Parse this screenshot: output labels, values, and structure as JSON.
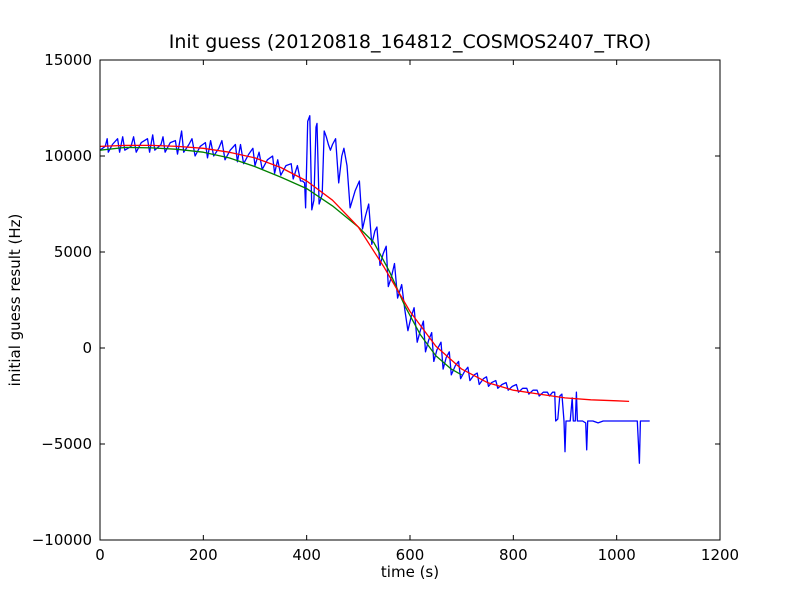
{
  "chart_data": {
    "type": "line",
    "title": "Init guess (20120818_164812_COSMOS2407_TRO)",
    "xlabel": "time (s)",
    "ylabel": "initial guess result (Hz)",
    "xlim": [
      0,
      1200
    ],
    "ylim": [
      -10000,
      15000
    ],
    "xticks": [
      0,
      200,
      400,
      600,
      800,
      1000,
      1200
    ],
    "yticks": [
      -10000,
      -5000,
      0,
      5000,
      10000,
      15000
    ],
    "xtick_labels": [
      "0",
      "200",
      "400",
      "600",
      "800",
      "1000",
      "1200"
    ],
    "ytick_labels": [
      "−10000",
      "−5000",
      "0",
      "5000",
      "10000",
      "15000"
    ],
    "grid": false,
    "series": [
      {
        "color": "#0000ff",
        "points": [
          [
            0,
            10300
          ],
          [
            10,
            10500
          ],
          [
            14,
            10900
          ],
          [
            16,
            10200
          ],
          [
            24,
            10600
          ],
          [
            34,
            10900
          ],
          [
            38,
            10200
          ],
          [
            44,
            11000
          ],
          [
            48,
            10300
          ],
          [
            60,
            10500
          ],
          [
            65,
            11000
          ],
          [
            70,
            10200
          ],
          [
            80,
            10700
          ],
          [
            92,
            10900
          ],
          [
            96,
            10200
          ],
          [
            102,
            11100
          ],
          [
            106,
            10300
          ],
          [
            118,
            10600
          ],
          [
            122,
            11000
          ],
          [
            126,
            10200
          ],
          [
            136,
            10700
          ],
          [
            146,
            10800
          ],
          [
            150,
            10100
          ],
          [
            158,
            11300
          ],
          [
            162,
            10200
          ],
          [
            172,
            10600
          ],
          [
            178,
            10900
          ],
          [
            184,
            10000
          ],
          [
            194,
            10500
          ],
          [
            204,
            10700
          ],
          [
            208,
            9900
          ],
          [
            214,
            10800
          ],
          [
            220,
            10000
          ],
          [
            230,
            10400
          ],
          [
            236,
            10800
          ],
          [
            242,
            9800
          ],
          [
            252,
            10300
          ],
          [
            262,
            10600
          ],
          [
            266,
            9700
          ],
          [
            272,
            10600
          ],
          [
            278,
            9600
          ],
          [
            288,
            10100
          ],
          [
            296,
            10400
          ],
          [
            300,
            9500
          ],
          [
            308,
            10200
          ],
          [
            314,
            9300
          ],
          [
            324,
            9800
          ],
          [
            334,
            10000
          ],
          [
            338,
            9100
          ],
          [
            344,
            9800
          ],
          [
            350,
            9000
          ],
          [
            360,
            9500
          ],
          [
            370,
            9600
          ],
          [
            374,
            8800
          ],
          [
            382,
            9500
          ],
          [
            388,
            8700
          ],
          [
            392,
            8700
          ],
          [
            396,
            8600
          ],
          [
            398,
            7300
          ],
          [
            402,
            11800
          ],
          [
            406,
            12100
          ],
          [
            410,
            7200
          ],
          [
            414,
            7700
          ],
          [
            418,
            11500
          ],
          [
            420,
            11700
          ],
          [
            424,
            7500
          ],
          [
            430,
            8000
          ],
          [
            434,
            11300
          ],
          [
            438,
            11000
          ],
          [
            442,
            10600
          ],
          [
            446,
            10300
          ],
          [
            450,
            10600
          ],
          [
            456,
            10900
          ],
          [
            462,
            8600
          ],
          [
            468,
            10000
          ],
          [
            472,
            10400
          ],
          [
            478,
            9500
          ],
          [
            484,
            7300
          ],
          [
            494,
            8200
          ],
          [
            502,
            8700
          ],
          [
            508,
            6200
          ],
          [
            514,
            6900
          ],
          [
            520,
            7500
          ],
          [
            526,
            5400
          ],
          [
            532,
            6100
          ],
          [
            536,
            6300
          ],
          [
            542,
            4300
          ],
          [
            548,
            4900
          ],
          [
            554,
            5300
          ],
          [
            558,
            3200
          ],
          [
            564,
            3700
          ],
          [
            570,
            4400
          ],
          [
            576,
            2600
          ],
          [
            584,
            3300
          ],
          [
            590,
            2000
          ],
          [
            596,
            900
          ],
          [
            602,
            1600
          ],
          [
            608,
            2100
          ],
          [
            614,
            300
          ],
          [
            620,
            900
          ],
          [
            626,
            1400
          ],
          [
            630,
            -200
          ],
          [
            636,
            400
          ],
          [
            642,
            800
          ],
          [
            646,
            -700
          ],
          [
            652,
            -100
          ],
          [
            660,
            300
          ],
          [
            664,
            -1100
          ],
          [
            670,
            -500
          ],
          [
            676,
            -200
          ],
          [
            680,
            -1400
          ],
          [
            688,
            -900
          ],
          [
            694,
            -700
          ],
          [
            698,
            -1600
          ],
          [
            706,
            -1200
          ],
          [
            712,
            -1000
          ],
          [
            716,
            -1700
          ],
          [
            724,
            -1400
          ],
          [
            730,
            -1300
          ],
          [
            734,
            -1900
          ],
          [
            742,
            -1600
          ],
          [
            748,
            -1500
          ],
          [
            752,
            -2000
          ],
          [
            758,
            -1800
          ],
          [
            766,
            -1700
          ],
          [
            770,
            -2100
          ],
          [
            778,
            -1900
          ],
          [
            786,
            -1800
          ],
          [
            790,
            -2200
          ],
          [
            798,
            -2000
          ],
          [
            806,
            -1900
          ],
          [
            810,
            -2300
          ],
          [
            818,
            -2100
          ],
          [
            826,
            -2100
          ],
          [
            830,
            -2400
          ],
          [
            838,
            -2200
          ],
          [
            846,
            -2200
          ],
          [
            850,
            -2500
          ],
          [
            858,
            -2300
          ],
          [
            866,
            -2300
          ],
          [
            870,
            -2500
          ],
          [
            876,
            -2300
          ],
          [
            880,
            -2300
          ],
          [
            882,
            -3800
          ],
          [
            886,
            -3700
          ],
          [
            890,
            -2500
          ],
          [
            894,
            -2400
          ],
          [
            898,
            -3800
          ],
          [
            900,
            -5400
          ],
          [
            902,
            -3800
          ],
          [
            910,
            -3800
          ],
          [
            914,
            -2600
          ],
          [
            916,
            -3800
          ],
          [
            920,
            -3800
          ],
          [
            922,
            -2300
          ],
          [
            924,
            -3800
          ],
          [
            934,
            -3800
          ],
          [
            940,
            -3900
          ],
          [
            942,
            -5300
          ],
          [
            944,
            -3800
          ],
          [
            954,
            -3800
          ],
          [
            964,
            -3900
          ],
          [
            974,
            -3800
          ],
          [
            984,
            -3800
          ],
          [
            994,
            -3800
          ],
          [
            1004,
            -3800
          ],
          [
            1014,
            -3800
          ],
          [
            1024,
            -3800
          ],
          [
            1034,
            -3800
          ],
          [
            1040,
            -3800
          ],
          [
            1044,
            -6000
          ],
          [
            1046,
            -3800
          ],
          [
            1058,
            -3800
          ],
          [
            1064,
            -3800
          ]
        ]
      },
      {
        "color": "#008000",
        "points": [
          [
            0,
            10300
          ],
          [
            50,
            10450
          ],
          [
            100,
            10420
          ],
          [
            150,
            10350
          ],
          [
            200,
            10200
          ],
          [
            250,
            9900
          ],
          [
            300,
            9450
          ],
          [
            350,
            8900
          ],
          [
            400,
            8300
          ],
          [
            450,
            7400
          ],
          [
            500,
            6300
          ],
          [
            530,
            5500
          ],
          [
            560,
            4000
          ],
          [
            590,
            2200
          ],
          [
            620,
            700
          ],
          [
            650,
            -400
          ],
          [
            680,
            -1100
          ],
          [
            700,
            -1400
          ]
        ]
      },
      {
        "color": "#ff0000",
        "points": [
          [
            0,
            10500
          ],
          [
            50,
            10550
          ],
          [
            100,
            10550
          ],
          [
            150,
            10500
          ],
          [
            200,
            10400
          ],
          [
            250,
            10200
          ],
          [
            300,
            9900
          ],
          [
            350,
            9400
          ],
          [
            400,
            8700
          ],
          [
            450,
            7700
          ],
          [
            500,
            6300
          ],
          [
            550,
            4200
          ],
          [
            600,
            1900
          ],
          [
            650,
            100
          ],
          [
            700,
            -1100
          ],
          [
            750,
            -1800
          ],
          [
            800,
            -2200
          ],
          [
            850,
            -2400
          ],
          [
            900,
            -2600
          ],
          [
            950,
            -2700
          ],
          [
            1000,
            -2750
          ],
          [
            1024,
            -2780
          ]
        ]
      }
    ]
  }
}
